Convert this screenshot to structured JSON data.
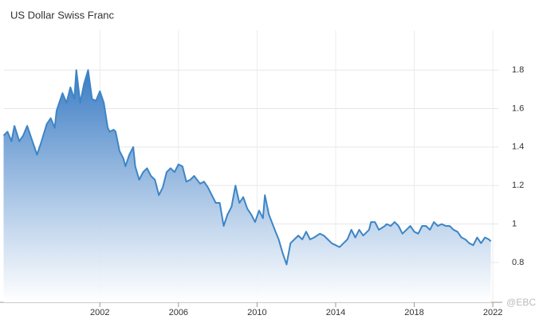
{
  "chart_data": {
    "type": "area",
    "title": "US Dollar Swiss Franc",
    "x": [
      1997.1,
      1997.3,
      1997.5,
      1997.65,
      1997.9,
      1998.1,
      1998.3,
      1998.5,
      1998.8,
      1999.0,
      1999.3,
      1999.5,
      1999.7,
      1999.8,
      2000.1,
      2000.3,
      2000.5,
      2000.7,
      2000.8,
      2001.0,
      2001.2,
      2001.4,
      2001.6,
      2001.8,
      2002.0,
      2002.2,
      2002.4,
      2002.5,
      2002.7,
      2002.8,
      2003.0,
      2003.2,
      2003.3,
      2003.5,
      2003.7,
      2003.8,
      2004.0,
      2004.2,
      2004.4,
      2004.6,
      2004.8,
      2005.0,
      2005.2,
      2005.4,
      2005.6,
      2005.8,
      2006.0,
      2006.2,
      2006.4,
      2006.6,
      2006.8,
      2007.1,
      2007.3,
      2007.5,
      2007.7,
      2007.9,
      2008.1,
      2008.3,
      2008.5,
      2008.7,
      2008.9,
      2009.1,
      2009.3,
      2009.5,
      2009.7,
      2009.9,
      2010.1,
      2010.3,
      2010.4,
      2010.6,
      2010.9,
      2011.1,
      2011.3,
      2011.5,
      2011.7,
      2011.9,
      2012.1,
      2012.3,
      2012.5,
      2012.7,
      2012.9,
      2013.2,
      2013.4,
      2013.6,
      2013.8,
      2014.0,
      2014.2,
      2014.4,
      2014.6,
      2014.8,
      2015.0,
      2015.2,
      2015.4,
      2015.7,
      2015.8,
      2016.0,
      2016.2,
      2016.5,
      2016.6,
      2016.8,
      2017.0,
      2017.2,
      2017.4,
      2017.6,
      2017.8,
      2018.0,
      2018.2,
      2018.4,
      2018.6,
      2018.8,
      2019.0,
      2019.2,
      2019.4,
      2019.6,
      2019.8,
      2020.0,
      2020.2,
      2020.4,
      2020.6,
      2020.8,
      2021.0,
      2021.2,
      2021.4,
      2021.6,
      2021.8,
      2021.9
    ],
    "values": [
      1.46,
      1.48,
      1.43,
      1.51,
      1.43,
      1.46,
      1.51,
      1.45,
      1.36,
      1.42,
      1.52,
      1.55,
      1.5,
      1.59,
      1.68,
      1.63,
      1.71,
      1.65,
      1.8,
      1.63,
      1.73,
      1.8,
      1.65,
      1.64,
      1.69,
      1.63,
      1.5,
      1.48,
      1.49,
      1.48,
      1.38,
      1.34,
      1.3,
      1.36,
      1.4,
      1.3,
      1.23,
      1.27,
      1.29,
      1.25,
      1.23,
      1.15,
      1.19,
      1.27,
      1.29,
      1.27,
      1.31,
      1.3,
      1.22,
      1.23,
      1.25,
      1.21,
      1.22,
      1.19,
      1.15,
      1.11,
      1.11,
      0.99,
      1.05,
      1.09,
      1.2,
      1.11,
      1.14,
      1.08,
      1.05,
      1.01,
      1.07,
      1.03,
      1.15,
      1.05,
      0.97,
      0.92,
      0.85,
      0.79,
      0.9,
      0.92,
      0.94,
      0.92,
      0.96,
      0.92,
      0.93,
      0.95,
      0.94,
      0.92,
      0.9,
      0.89,
      0.88,
      0.9,
      0.92,
      0.97,
      0.93,
      0.97,
      0.94,
      0.97,
      1.01,
      1.01,
      0.97,
      0.99,
      1.0,
      0.99,
      1.01,
      0.99,
      0.95,
      0.97,
      0.99,
      0.96,
      0.95,
      0.99,
      0.99,
      0.97,
      1.01,
      0.99,
      1.0,
      0.99,
      0.99,
      0.97,
      0.96,
      0.93,
      0.92,
      0.9,
      0.89,
      0.93,
      0.9,
      0.93,
      0.92,
      0.91
    ],
    "color": "#3d85c6",
    "xlim": [
      1997.12,
      2022.28
    ],
    "xticks": [
      2002,
      2006,
      2010,
      2014,
      2018,
      2022
    ],
    "ylim": [
      0.593,
      2.007
    ],
    "yticks": [
      0.8,
      1,
      1.2,
      1.4,
      1.6,
      1.8
    ],
    "grid": true,
    "watermark": "@EBC"
  }
}
